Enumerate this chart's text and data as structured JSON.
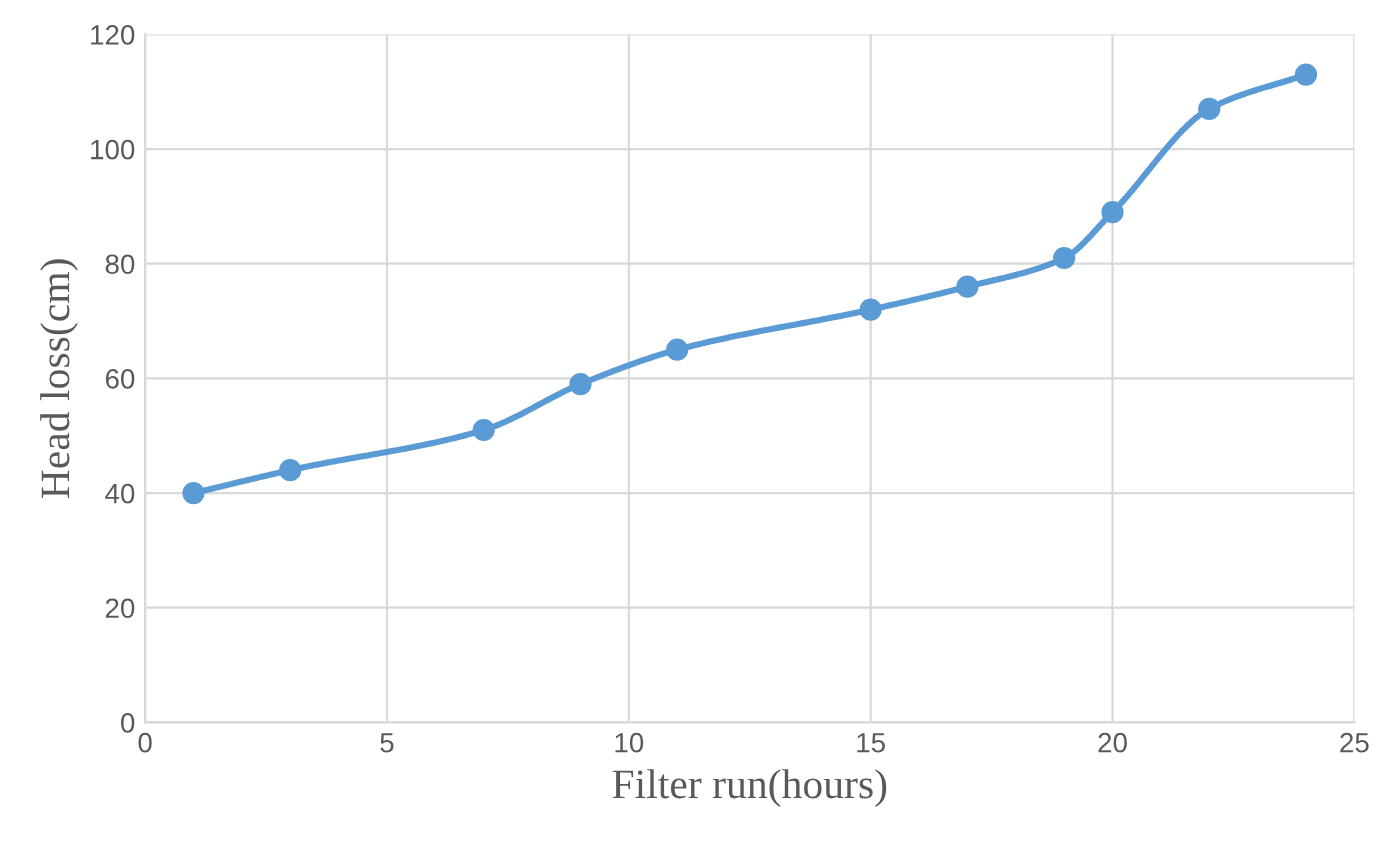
{
  "chart_data": {
    "type": "line",
    "xlabel": "Filter run(hours)",
    "ylabel": "Head loss(cm)",
    "x": [
      1,
      3,
      7,
      9,
      11,
      15,
      17,
      19,
      20,
      22,
      24
    ],
    "series": [
      {
        "color": "#5b9bd5",
        "values": [
          40,
          44,
          51,
          59,
          65,
          72,
          76,
          81,
          89,
          107,
          113
        ]
      }
    ],
    "xlim": [
      0,
      25
    ],
    "xticks": [
      0,
      5,
      10,
      15,
      20,
      25
    ],
    "ylim": [
      0,
      120
    ],
    "yticks": [
      0,
      20,
      40,
      60,
      80,
      100,
      120
    ],
    "grid": true,
    "marker": "circle",
    "line_style": "solid"
  }
}
